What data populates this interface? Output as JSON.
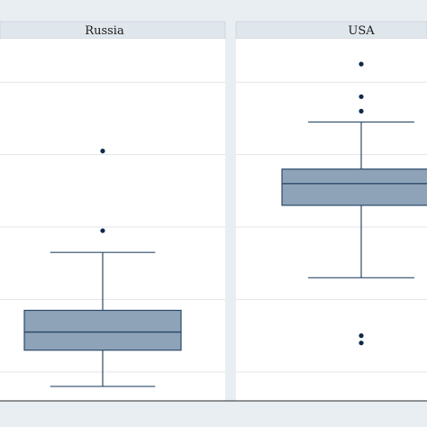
{
  "chart_data": {
    "type": "box",
    "panels": [
      {
        "title": "Russia",
        "box": {
          "whisker_low": 1.2,
          "q1": 1.7,
          "median": 1.95,
          "q3": 2.25,
          "whisker_high": 3.05
        },
        "outliers": [
          3.35,
          4.45
        ]
      },
      {
        "title": "USA",
        "box": {
          "whisker_low": 2.7,
          "q1": 3.7,
          "median": 4.0,
          "q3": 4.2,
          "whisker_high": 4.85
        },
        "outliers": [
          1.8,
          1.9,
          5.0,
          5.2,
          5.65
        ]
      }
    ],
    "ylim": [
      1.0,
      6.0
    ],
    "y_gridlines": [
      1.4,
      2.4,
      3.4,
      4.4,
      5.4
    ],
    "grid": true,
    "colors": {
      "background": "#e8eef2",
      "plot_area": "#ffffff",
      "box_fill": "#8ea3b8",
      "box_stroke": "#2d4a68",
      "whisker": "#2d4a68",
      "outlier": "#0f2a4a",
      "gridline": "#e2e6ea",
      "strip": "#dfe6ec",
      "axis": "#2a2a2a"
    }
  }
}
